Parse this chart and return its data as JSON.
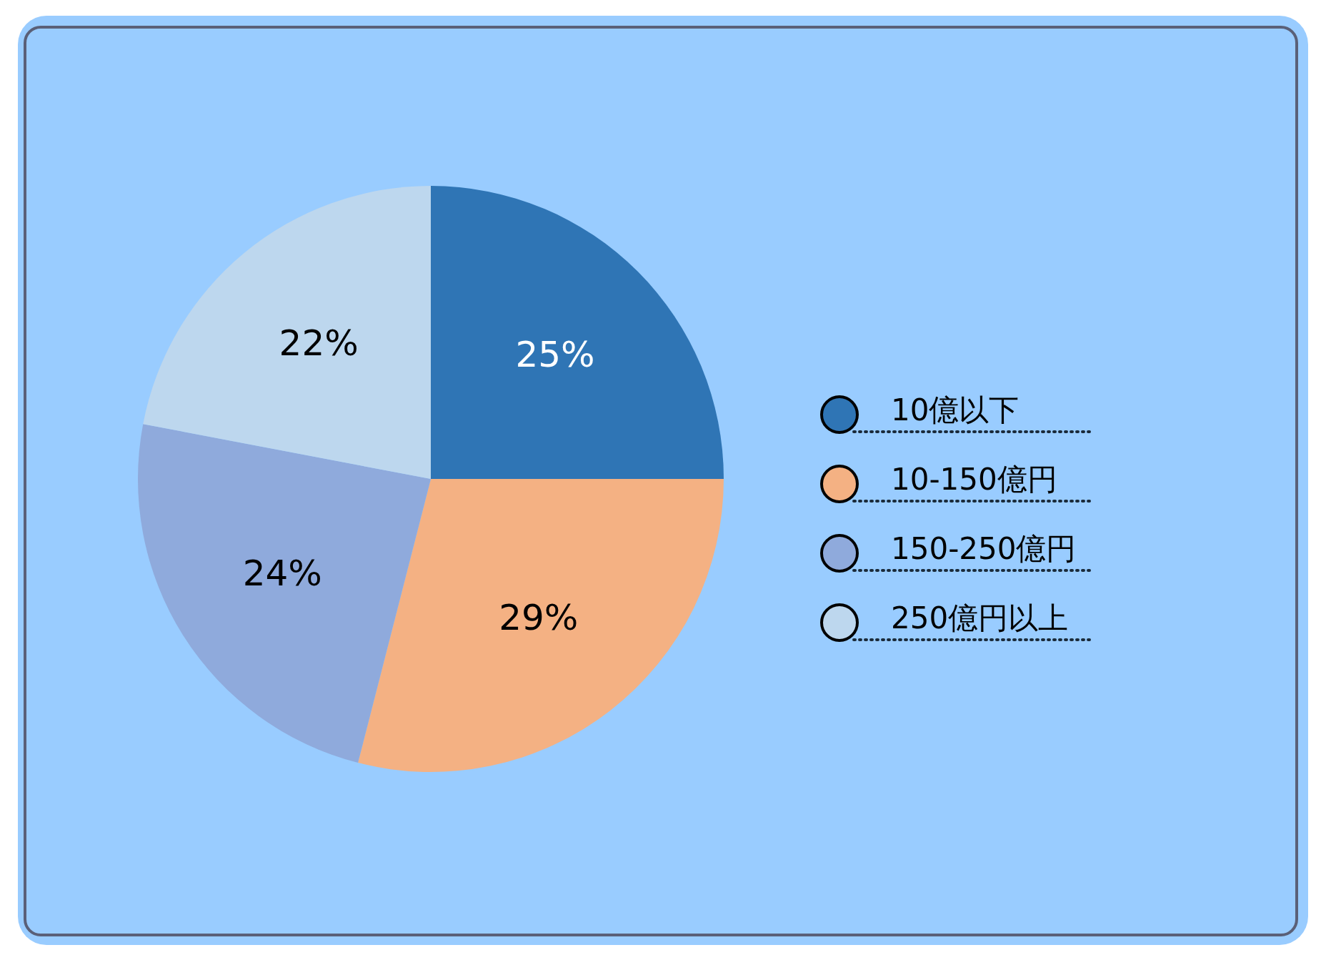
{
  "chart_data": {
    "type": "pie",
    "categories": [
      "10億以下",
      "10-150億円",
      "150-250億円",
      "250億円以上"
    ],
    "values": [
      25,
      29,
      24,
      22
    ],
    "colors": [
      "#2f75b5",
      "#f4b183",
      "#8faadc",
      "#bdd7ee"
    ],
    "value_labels": [
      "25%",
      "29%",
      "24%",
      "22%"
    ],
    "legend": "right"
  }
}
